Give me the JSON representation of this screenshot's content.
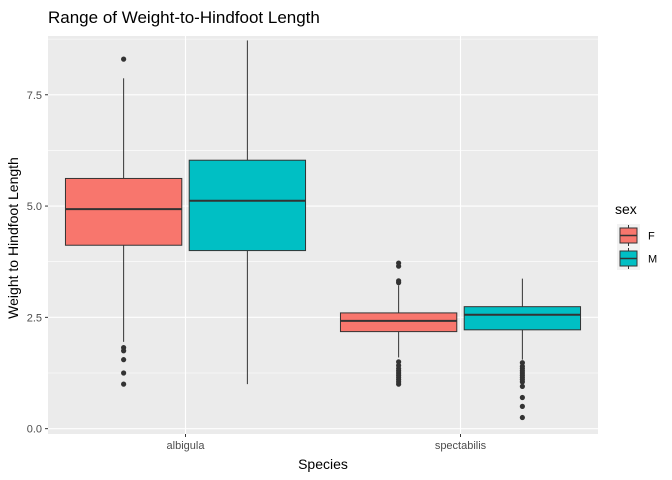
{
  "chart_data": {
    "type": "boxplot",
    "title": "Range of Weight-to-Hindfoot Length",
    "xlabel": "Species",
    "ylabel": "Weight to Hindfoot Length",
    "categories": [
      "albigula",
      "spectabilis"
    ],
    "ylim": [
      -0.12,
      8.82
    ],
    "yticks": [
      0.0,
      2.5,
      5.0,
      7.5
    ],
    "ytick_labels": [
      "0.0",
      "2.5",
      "5.0",
      "7.5"
    ],
    "grid": true,
    "background": "#ebebeb",
    "gridline_color": "#ffffff",
    "legend": {
      "title": "sex",
      "position": "right",
      "entries": [
        {
          "label": "F",
          "color": "#f8766d"
        },
        {
          "label": "M",
          "color": "#00bfc4"
        }
      ]
    },
    "series": [
      {
        "name": "F",
        "color": "#f8766d",
        "boxes": [
          {
            "category": "albigula",
            "whisker_low": 1.95,
            "q1": 4.12,
            "median": 4.93,
            "q3": 5.62,
            "whisker_high": 7.87,
            "outliers": [
              1.0,
              1.25,
              1.55,
              1.75,
              1.82,
              8.3
            ]
          },
          {
            "category": "spectabilis",
            "whisker_low": 1.6,
            "q1": 2.18,
            "median": 2.42,
            "q3": 2.6,
            "whisker_high": 3.22,
            "outliers": [
              1.0,
              1.05,
              1.1,
              1.15,
              1.2,
              1.25,
              1.3,
              1.35,
              1.42,
              1.5,
              3.28,
              3.32,
              3.65,
              3.72
            ]
          }
        ]
      },
      {
        "name": "M",
        "color": "#00bfc4",
        "boxes": [
          {
            "category": "albigula",
            "whisker_low": 1.0,
            "q1": 4.0,
            "median": 5.12,
            "q3": 6.03,
            "whisker_high": 8.72,
            "outliers": []
          },
          {
            "category": "spectabilis",
            "whisker_low": 1.55,
            "q1": 2.22,
            "median": 2.56,
            "q3": 2.74,
            "whisker_high": 3.37,
            "outliers": [
              0.25,
              0.5,
              0.7,
              0.95,
              1.05,
              1.1,
              1.15,
              1.2,
              1.25,
              1.3,
              1.35,
              1.4,
              1.48
            ]
          }
        ]
      }
    ]
  }
}
